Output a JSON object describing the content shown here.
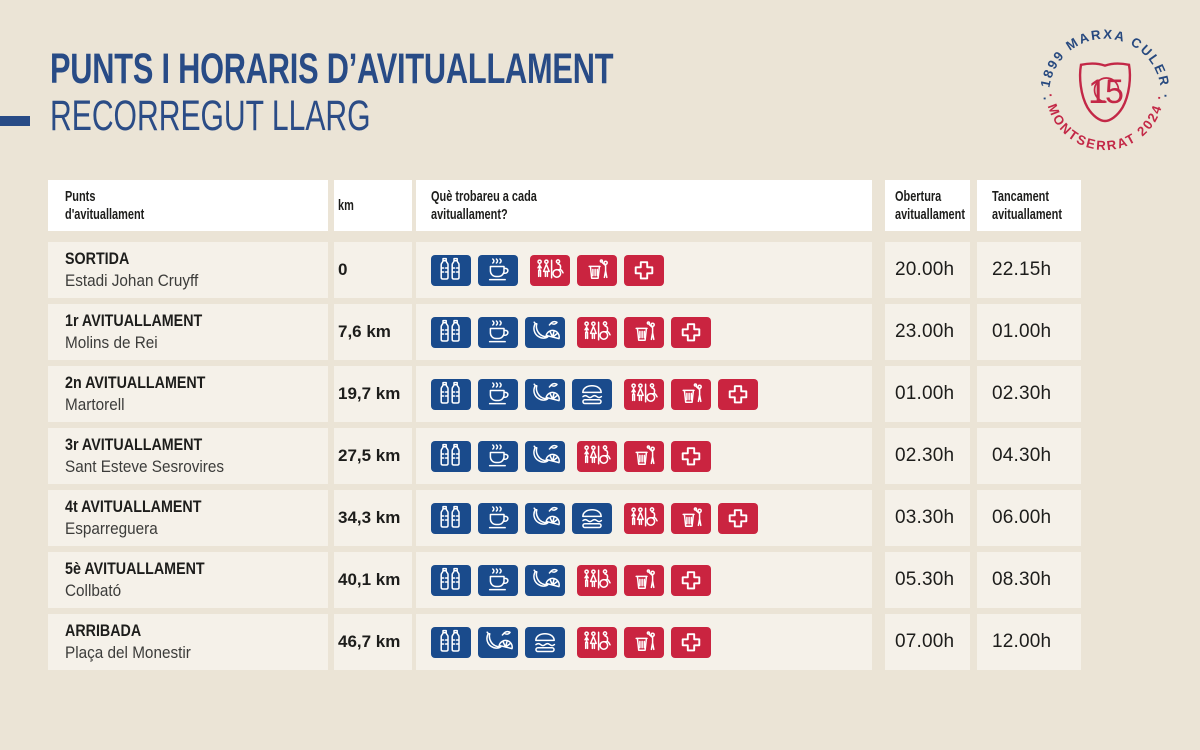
{
  "title": {
    "line1": "PUNTS I HORARIS D’AVITUALLAMENT",
    "line2": "RECORREGUT LLARG",
    "accent_color": "#284B86"
  },
  "logo": {
    "arc_top": "· 1899 MARXA CULER ·",
    "arc_bottom": "· MONTSERRAT 2024 ·",
    "badge_number": "15",
    "blue": "#27497F",
    "red": "#C32847"
  },
  "colors": {
    "page_bg": "#EBE4D6",
    "header_bg": "#FFFFFF",
    "row_bg": "#F5F1E9",
    "tile_blue": "#1A4B8C",
    "tile_red": "#CA2440",
    "text_dark": "#1D1D1B",
    "text_soft": "#3C3C3A"
  },
  "table": {
    "headers": {
      "col1": [
        "Punts",
        "d'avituallament"
      ],
      "col2": [
        "km"
      ],
      "col3": [
        "Què trobareu a cada",
        "avituallament?"
      ],
      "col4": [
        "Obertura",
        "avituallament"
      ],
      "col5": [
        "Tancament",
        "avituallament"
      ]
    },
    "icon_types": {
      "bottles": {
        "name": "water-bottles-icon",
        "color": "blue"
      },
      "coffee": {
        "name": "hot-drink-icon",
        "color": "blue"
      },
      "fruit": {
        "name": "fruit-icon",
        "color": "blue"
      },
      "sandwich": {
        "name": "sandwich-icon",
        "color": "blue"
      },
      "wc": {
        "name": "toilets-icon",
        "color": "red"
      },
      "trash": {
        "name": "waste-bin-icon",
        "color": "red"
      },
      "firstaid": {
        "name": "first-aid-icon",
        "color": "red"
      }
    },
    "rows": [
      {
        "name": "SORTIDA",
        "place": "Estadi Johan Cruyff",
        "km": "0",
        "icons": [
          "bottles",
          "coffee",
          "wc",
          "trash",
          "firstaid"
        ],
        "open": "20.00h",
        "close": "22.15h"
      },
      {
        "name": "1r AVITUALLAMENT",
        "place": "Molins de Rei",
        "km": "7,6 km",
        "icons": [
          "bottles",
          "coffee",
          "fruit",
          "wc",
          "trash",
          "firstaid"
        ],
        "open": "23.00h",
        "close": "01.00h"
      },
      {
        "name": "2n AVITUALLAMENT",
        "place": "Martorell",
        "km": "19,7 km",
        "icons": [
          "bottles",
          "coffee",
          "fruit",
          "sandwich",
          "wc",
          "trash",
          "firstaid"
        ],
        "open": "01.00h",
        "close": "02.30h"
      },
      {
        "name": "3r AVITUALLAMENT",
        "place": "Sant Esteve Sesrovires",
        "km": "27,5 km",
        "icons": [
          "bottles",
          "coffee",
          "fruit",
          "wc",
          "trash",
          "firstaid"
        ],
        "open": "02.30h",
        "close": "04.30h"
      },
      {
        "name": "4t AVITUALLAMENT",
        "place": "Esparreguera",
        "km": "34,3 km",
        "icons": [
          "bottles",
          "coffee",
          "fruit",
          "sandwich",
          "wc",
          "trash",
          "firstaid"
        ],
        "open": "03.30h",
        "close": "06.00h"
      },
      {
        "name": "5è AVITUALLAMENT",
        "place": "Collbató",
        "km": "40,1 km",
        "icons": [
          "bottles",
          "coffee",
          "fruit",
          "wc",
          "trash",
          "firstaid"
        ],
        "open": "05.30h",
        "close": "08.30h"
      },
      {
        "name": "ARRIBADA",
        "place": "Plaça del Monestir",
        "km": "46,7 km",
        "icons": [
          "bottles",
          "fruit",
          "sandwich",
          "wc",
          "trash",
          "firstaid"
        ],
        "open": "07.00h",
        "close": "12.00h"
      }
    ]
  }
}
